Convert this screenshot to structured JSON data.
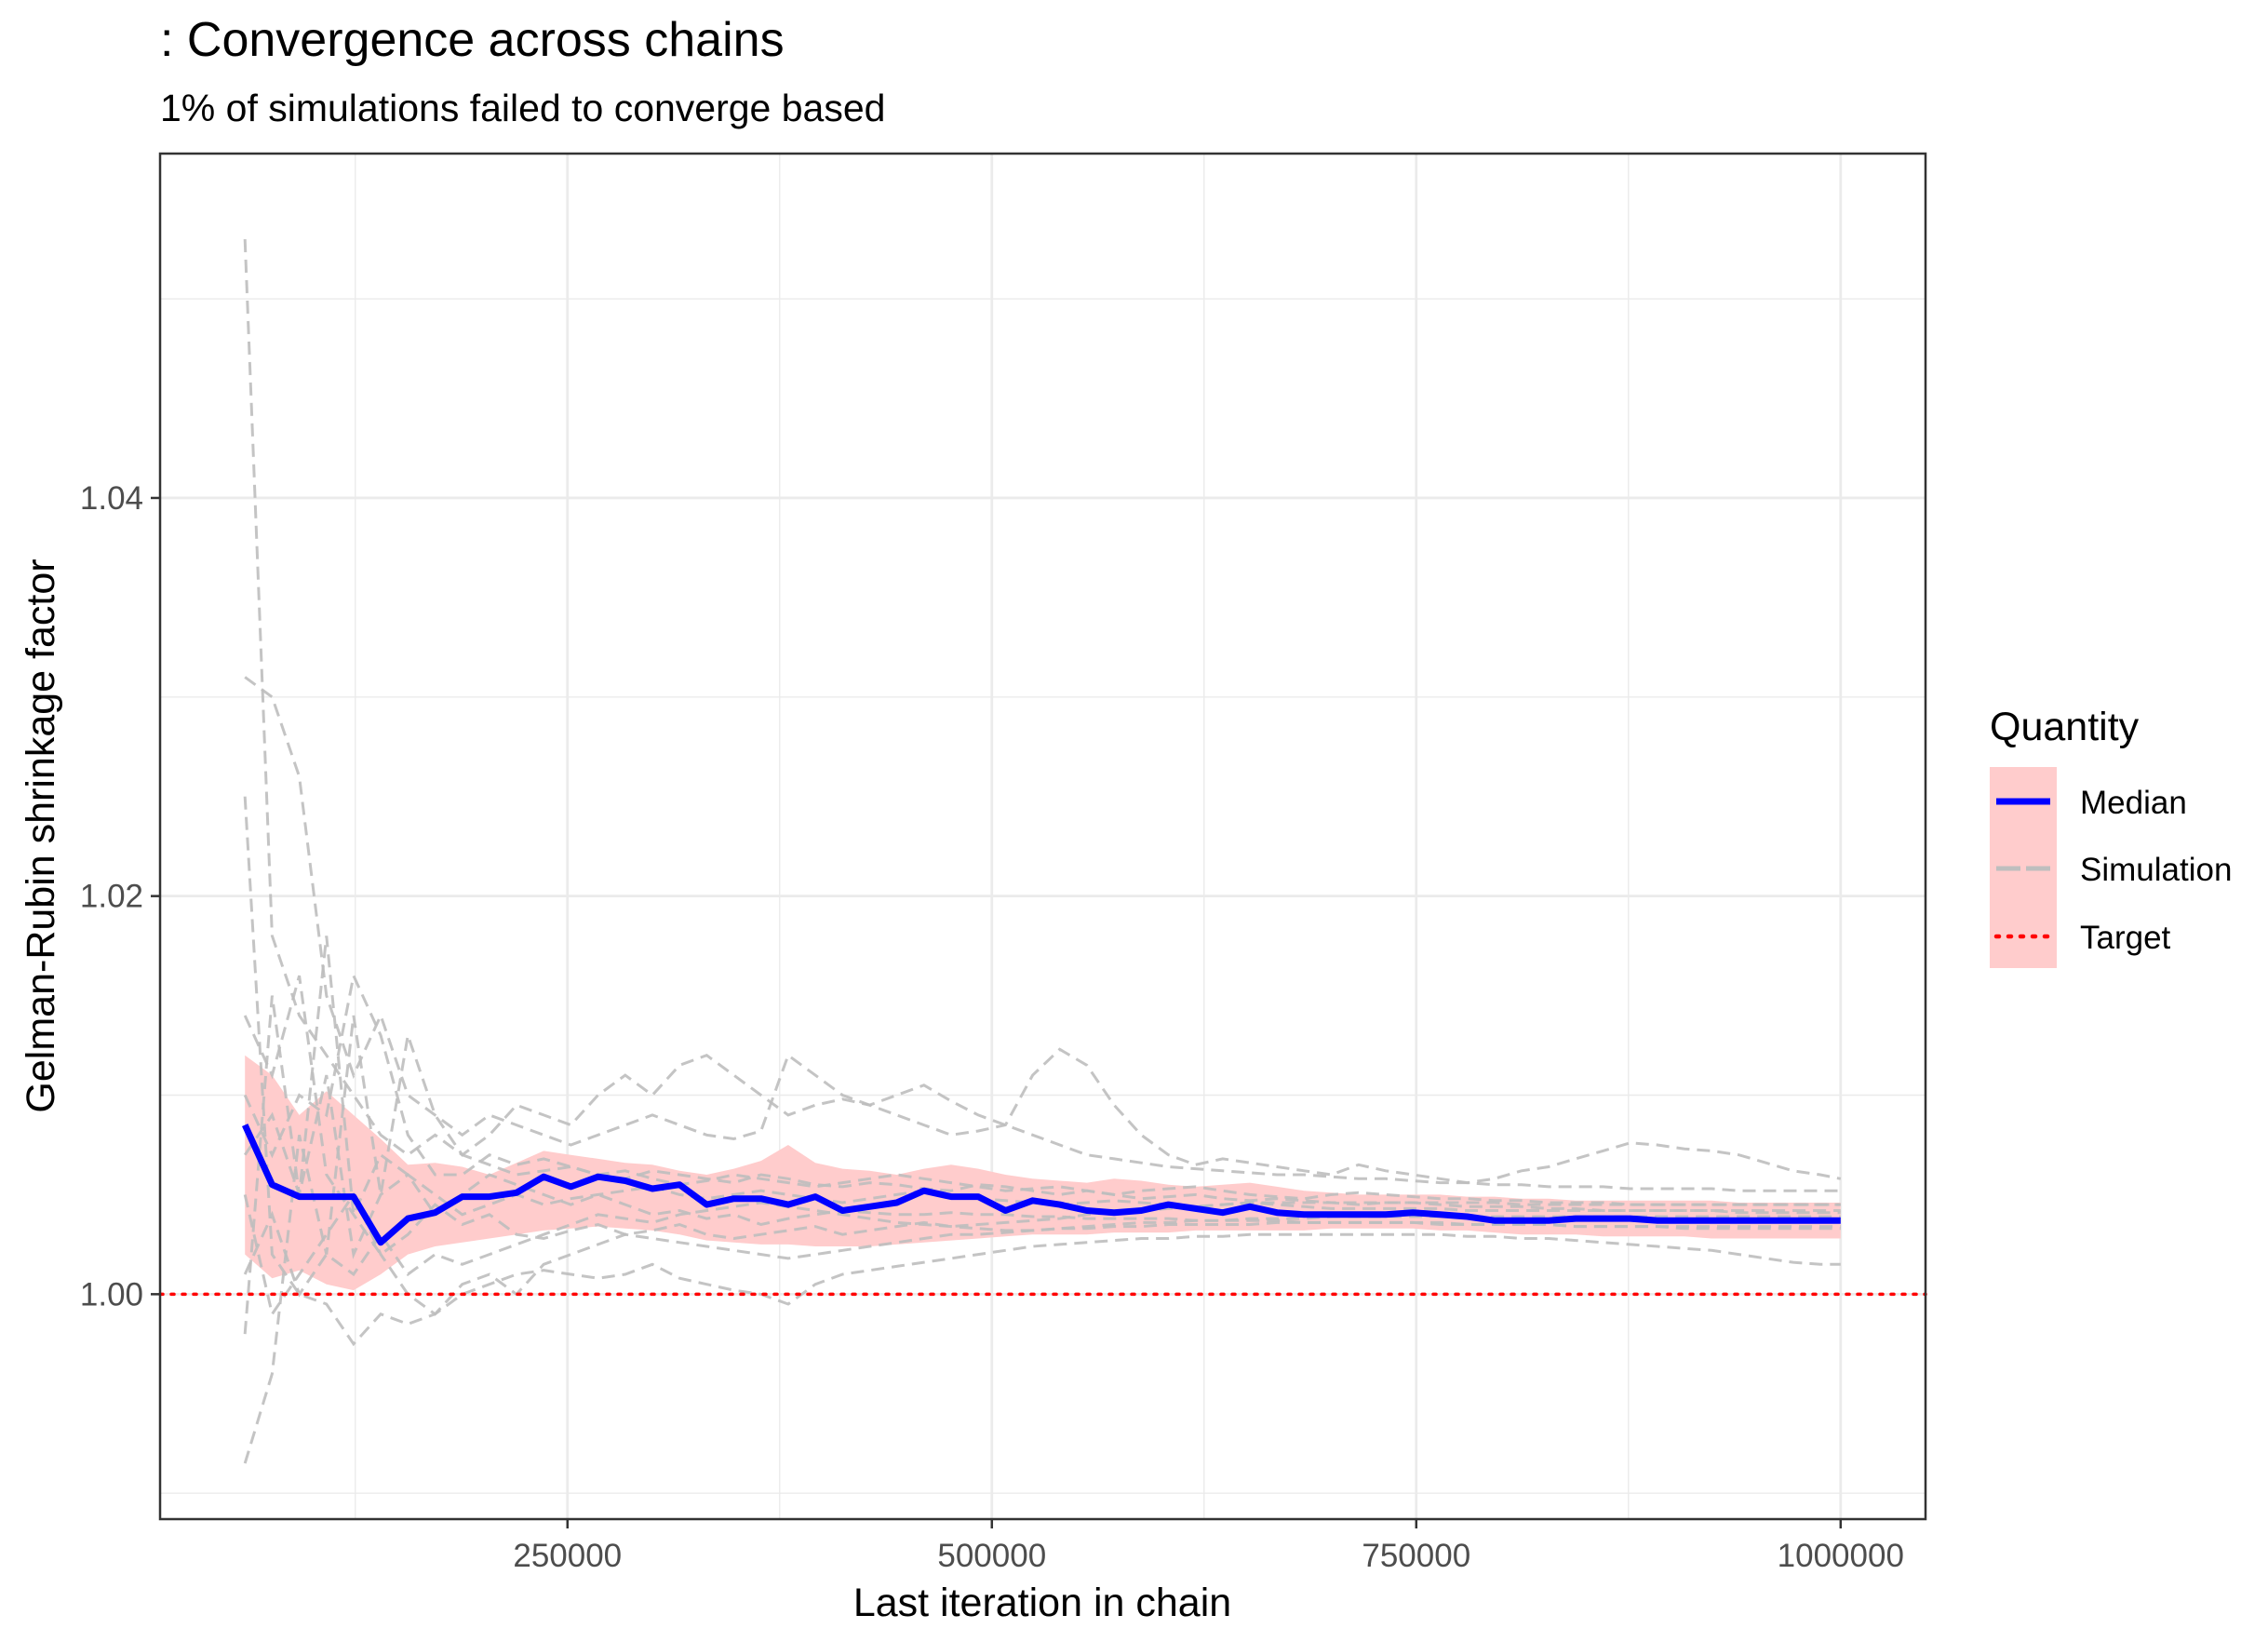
{
  "chart_data": {
    "type": "line",
    "title": ": Convergence across chains",
    "subtitle": "1% of simulations failed to converge based",
    "xlabel": "Last iteration in chain",
    "ylabel": "Gelman-Rubin shrinkage factor",
    "xlim": [
      10000,
      1050000
    ],
    "ylim": [
      0.9887,
      1.0573
    ],
    "x_ticks": [
      250000,
      500000,
      750000,
      1000000
    ],
    "x_tick_labels": [
      "250000",
      "500000",
      "750000",
      "1000000"
    ],
    "y_ticks": [
      1.0,
      1.02,
      1.04
    ],
    "y_tick_labels": [
      "1.00",
      "1.02",
      "1.04"
    ],
    "grid": true,
    "legend": {
      "title": "Quantity",
      "position": "right",
      "entries": [
        {
          "label": "Median",
          "color": "#0000ff",
          "style": "solid"
        },
        {
          "label": "Simulation",
          "color": "#bebebe",
          "style": "dashed"
        },
        {
          "label": "Target",
          "color": "#ff0000",
          "style": "dotted"
        }
      ]
    },
    "target": 1.0,
    "colors": {
      "median": "#0000ff",
      "simulation": "#bebebe",
      "target": "#ff0000",
      "band": "#ffcccc",
      "grid": "#ebebeb",
      "axis_text": "#4d4d4d"
    },
    "x": [
      60000,
      76000,
      92000,
      108000,
      124000,
      140000,
      156000,
      172000,
      188000,
      204000,
      220000,
      236000,
      252000,
      268000,
      284000,
      300000,
      316000,
      332000,
      348000,
      364000,
      380000,
      396000,
      412000,
      428000,
      444000,
      460000,
      476000,
      492000,
      508000,
      524000,
      540000,
      556000,
      572000,
      588000,
      604000,
      620000,
      636000,
      652000,
      668000,
      684000,
      700000,
      716000,
      732000,
      748000,
      764000,
      780000,
      796000,
      812000,
      828000,
      844000,
      860000,
      876000,
      892000,
      908000,
      924000,
      940000,
      956000,
      972000,
      988000,
      1000000
    ],
    "series": [
      {
        "name": "Median",
        "values": [
          1.0085,
          1.0055,
          1.0049,
          1.0049,
          1.0049,
          1.0026,
          1.0038,
          1.0041,
          1.0049,
          1.0049,
          1.0051,
          1.0059,
          1.0054,
          1.0059,
          1.0057,
          1.0053,
          1.0055,
          1.0045,
          1.0048,
          1.0048,
          1.0045,
          1.0049,
          1.0042,
          1.0044,
          1.0046,
          1.0052,
          1.0049,
          1.0049,
          1.0042,
          1.0047,
          1.0045,
          1.0042,
          1.0041,
          1.0042,
          1.0045,
          1.0043,
          1.0041,
          1.0044,
          1.0041,
          1.004,
          1.004,
          1.004,
          1.004,
          1.0041,
          1.004,
          1.0039,
          1.0037,
          1.0037,
          1.0037,
          1.0038,
          1.0038,
          1.0038,
          1.0037,
          1.0037,
          1.0037,
          1.0037,
          1.0037,
          1.0037,
          1.0037,
          1.0037
        ]
      },
      {
        "name": "band_lower",
        "values": [
          1.002,
          1.0008,
          1.0012,
          1.0005,
          1.0002,
          1.001,
          1.002,
          1.0024,
          1.0026,
          1.0028,
          1.003,
          1.0032,
          1.0033,
          1.0034,
          1.0033,
          1.0032,
          1.003,
          1.0027,
          1.0026,
          1.0025,
          1.0025,
          1.0024,
          1.0024,
          1.0024,
          1.0025,
          1.0026,
          1.0027,
          1.0028,
          1.0029,
          1.003,
          1.003,
          1.003,
          1.0031,
          1.0031,
          1.0031,
          1.0032,
          1.0032,
          1.0032,
          1.0032,
          1.0032,
          1.0033,
          1.0033,
          1.0033,
          1.0033,
          1.0032,
          1.0032,
          1.0031,
          1.003,
          1.003,
          1.003,
          1.0029,
          1.0029,
          1.0029,
          1.0029,
          1.0028,
          1.0028,
          1.0028,
          1.0028,
          1.0028,
          1.0028
        ]
      },
      {
        "name": "band_upper",
        "values": [
          1.012,
          1.011,
          1.009,
          1.0102,
          1.009,
          1.0078,
          1.0065,
          1.0066,
          1.0064,
          1.006,
          1.0066,
          1.0072,
          1.007,
          1.0068,
          1.0066,
          1.0065,
          1.0062,
          1.006,
          1.0063,
          1.0067,
          1.0075,
          1.0066,
          1.0063,
          1.0062,
          1.006,
          1.0063,
          1.0065,
          1.0063,
          1.006,
          1.0058,
          1.0057,
          1.0056,
          1.0058,
          1.0057,
          1.0055,
          1.0054,
          1.0055,
          1.0056,
          1.0054,
          1.0052,
          1.0051,
          1.005,
          1.005,
          1.005,
          1.005,
          1.0049,
          1.0049,
          1.0048,
          1.0048,
          1.0047,
          1.0047,
          1.0047,
          1.0047,
          1.0047,
          1.0047,
          1.0046,
          1.0046,
          1.0046,
          1.0046,
          1.0046
        ]
      },
      {
        "name": "sim_a",
        "values": [
          1.053,
          1.018,
          1.014,
          1.012,
          1.01,
          1.008,
          1.007,
          1.008,
          1.007,
          1.0065,
          1.006,
          1.0062,
          1.0064,
          1.006,
          1.0058,
          1.0062,
          1.006,
          1.0058,
          1.0056,
          1.006,
          1.0058,
          1.0055,
          1.0054,
          1.0056,
          1.0055,
          1.0053,
          1.0052,
          1.0055,
          1.0054,
          1.0052,
          1.005,
          1.0052,
          1.005,
          1.0048,
          1.0049,
          1.005,
          1.0048,
          1.0047,
          1.0048,
          1.0047,
          1.0046,
          1.0045,
          1.0046,
          1.0046,
          1.0045,
          1.0044,
          1.0044,
          1.0044,
          1.0043,
          1.0043,
          1.0042,
          1.0042,
          1.0042,
          1.0042,
          1.0042,
          1.0041,
          1.0041,
          1.0041,
          1.0041,
          1.0041
        ]
      },
      {
        "name": "sim_b",
        "values": [
          0.9915,
          0.996,
          1.008,
          1.002,
          1.014,
          1.005,
          1.013,
          1.009,
          1.007,
          1.008,
          1.0095,
          1.009,
          1.0085,
          1.01,
          1.011,
          1.01,
          1.0115,
          1.012,
          1.011,
          1.01,
          1.009,
          1.0095,
          1.0098,
          1.0095,
          1.01,
          1.0105,
          1.0097,
          1.009,
          1.0085,
          1.008,
          1.0075,
          1.007,
          1.0068,
          1.0066,
          1.0064,
          1.0063,
          1.0062,
          1.0061,
          1.006,
          1.006,
          1.0059,
          1.0058,
          1.0058,
          1.0057,
          1.0056,
          1.0056,
          1.0055,
          1.0055,
          1.0054,
          1.0054,
          1.0054,
          1.0053,
          1.0053,
          1.0053,
          1.0053,
          1.0052,
          1.0052,
          1.0052,
          1.0052,
          1.0052
        ]
      },
      {
        "name": "sim_c",
        "values": [
          1.031,
          1.03,
          1.026,
          1.015,
          1.011,
          1.014,
          1.01,
          1.009,
          1.008,
          1.009,
          1.0085,
          1.008,
          1.0075,
          1.008,
          1.0085,
          1.009,
          1.0085,
          1.008,
          1.0078,
          1.0082,
          1.012,
          1.011,
          1.01,
          1.0095,
          1.009,
          1.0085,
          1.008,
          1.0082,
          1.0085,
          1.011,
          1.0123,
          1.0115,
          1.0095,
          1.008,
          1.007,
          1.0065,
          1.0068,
          1.0066,
          1.0064,
          1.0062,
          1.006,
          1.0065,
          1.0062,
          1.006,
          1.0058,
          1.0056,
          1.0058,
          1.0062,
          1.0064,
          1.0068,
          1.0072,
          1.0076,
          1.0075,
          1.0073,
          1.0072,
          1.007,
          1.0066,
          1.0062,
          1.006,
          1.0058
        ]
      },
      {
        "name": "sim_d",
        "values": [
          1.025,
          1.002,
          1.0,
          0.9995,
          0.9975,
          0.999,
          0.9985,
          0.999,
          1.0,
          1.0005,
          1.001,
          1.0012,
          1.001,
          1.0008,
          1.001,
          1.0015,
          1.0008,
          1.0005,
          1.0002,
          1.0,
          0.9995,
          1.0005,
          1.001,
          1.0012,
          1.0014,
          1.0016,
          1.0018,
          1.002,
          1.0022,
          1.0024,
          1.0025,
          1.0026,
          1.0027,
          1.0028,
          1.0028,
          1.0029,
          1.0029,
          1.003,
          1.003,
          1.003,
          1.003,
          1.003,
          1.003,
          1.003,
          1.003,
          1.0029,
          1.0029,
          1.0028,
          1.0028,
          1.0027,
          1.0026,
          1.0025,
          1.0024,
          1.0023,
          1.0022,
          1.002,
          1.0018,
          1.0016,
          1.0015,
          1.0015
        ]
      },
      {
        "name": "sim_e",
        "values": [
          0.998,
          1.015,
          1.005,
          1.018,
          1.004,
          1.007,
          1.006,
          1.004,
          1.005,
          1.006,
          1.0055,
          1.005,
          1.0045,
          1.005,
          1.0045,
          1.004,
          1.0042,
          1.0038,
          1.004,
          1.0035,
          1.0038,
          1.004,
          1.0042,
          1.0041,
          1.004,
          1.004,
          1.0041,
          1.004,
          1.004,
          1.0039,
          1.0039,
          1.0038,
          1.0038,
          1.0038,
          1.0038,
          1.0037,
          1.0037,
          1.0037,
          1.0037,
          1.0036,
          1.0036,
          1.0036,
          1.0036,
          1.0036,
          1.0035,
          1.0035,
          1.0035,
          1.0035,
          1.0035,
          1.0034,
          1.0034,
          1.0034,
          1.0034,
          1.0034,
          1.0034,
          1.0034,
          1.0034,
          1.0034,
          1.0034,
          1.0034
        ]
      },
      {
        "name": "sim_f",
        "values": [
          1.014,
          1.011,
          1.016,
          1.006,
          1.004,
          1.002,
          1.003,
          1.0045,
          1.0035,
          1.004,
          1.003,
          1.0028,
          1.0032,
          1.0035,
          1.003,
          1.0032,
          1.0035,
          1.003,
          1.0028,
          1.003,
          1.0032,
          1.0034,
          1.003,
          1.0032,
          1.0034,
          1.0036,
          1.0034,
          1.0035,
          1.0036,
          1.0037,
          1.0038,
          1.004,
          1.0041,
          1.0042,
          1.0043,
          1.0044,
          1.0045,
          1.0046,
          1.0046,
          1.0046,
          1.0046,
          1.0046,
          1.0046,
          1.0046,
          1.0046,
          1.0046,
          1.0046,
          1.0045,
          1.0045,
          1.0045,
          1.0045,
          1.0045,
          1.0045,
          1.0045,
          1.0045,
          1.0045,
          1.0045,
          1.0045,
          1.0045,
          1.0045
        ]
      },
      {
        "name": "sim_g",
        "values": [
          1.005,
          0.999,
          1.001,
          1.003,
          1.005,
          1.002,
          1.0,
          0.999,
          1.0005,
          1.001,
          1.0,
          1.0015,
          1.002,
          1.0025,
          1.003,
          1.0028,
          1.0026,
          1.0024,
          1.0022,
          1.002,
          1.0018,
          1.002,
          1.0022,
          1.0024,
          1.0026,
          1.0028,
          1.003,
          1.003,
          1.0031,
          1.0032,
          1.0033,
          1.0033,
          1.0034,
          1.0034,
          1.0035,
          1.0035,
          1.0035,
          1.0035,
          1.0036,
          1.0036,
          1.0036,
          1.0036,
          1.0036,
          1.0036,
          1.0036,
          1.0035,
          1.0035,
          1.0035,
          1.0035,
          1.0034,
          1.0034,
          1.0034,
          1.0034,
          1.0033,
          1.0033,
          1.0033,
          1.0033,
          1.0033,
          1.0033,
          1.0033
        ]
      },
      {
        "name": "sim_h",
        "values": [
          1.01,
          1.007,
          1.01,
          1.009,
          1.016,
          1.013,
          1.008,
          1.006,
          1.006,
          1.007,
          1.0065,
          1.0068,
          1.0064,
          1.006,
          1.0062,
          1.0058,
          1.0055,
          1.0057,
          1.006,
          1.0058,
          1.0056,
          1.0054,
          1.0056,
          1.0058,
          1.006,
          1.0058,
          1.0056,
          1.0054,
          1.0052,
          1.0053,
          1.0054,
          1.0052,
          1.005,
          1.0052,
          1.0053,
          1.0054,
          1.0052,
          1.005,
          1.0049,
          1.0048,
          1.005,
          1.0051,
          1.005,
          1.0049,
          1.0048,
          1.0048,
          1.0047,
          1.0047,
          1.0046,
          1.0046,
          1.0046,
          1.0045,
          1.0045,
          1.0045,
          1.0045,
          1.0045,
          1.0045,
          1.0045,
          1.0045,
          1.0045
        ]
      },
      {
        "name": "sim_i",
        "values": [
          1.001,
          1.004,
          1.0,
          1.002,
          1.001,
          1.003,
          1.001,
          1.002,
          1.0015,
          1.002,
          1.0025,
          1.003,
          1.0035,
          1.004,
          1.0038,
          1.0036,
          1.004,
          1.0042,
          1.0044,
          1.0046,
          1.0044,
          1.0042,
          1.004,
          1.0038,
          1.0036,
          1.0035,
          1.0034,
          1.0033,
          1.0032,
          1.0032,
          1.0033,
          1.0034,
          1.0035,
          1.0036,
          1.0036,
          1.0037,
          1.0037,
          1.0038,
          1.0038,
          1.0038,
          1.0039,
          1.0039,
          1.0039,
          1.0039,
          1.0039,
          1.0039,
          1.0039,
          1.0039,
          1.0039,
          1.0039,
          1.0039,
          1.0039,
          1.0039,
          1.0039,
          1.0039,
          1.0039,
          1.0039,
          1.0039,
          1.0039,
          1.0039
        ]
      },
      {
        "name": "sim_j",
        "values": [
          1.007,
          1.009,
          1.005,
          1.011,
          1.002,
          1.005,
          1.006,
          1.005,
          1.004,
          1.0045,
          1.005,
          1.0045,
          1.0048,
          1.005,
          1.0052,
          1.0054,
          1.005,
          1.0048,
          1.005,
          1.0052,
          1.005,
          1.0048,
          1.0046,
          1.0048,
          1.005,
          1.0052,
          1.005,
          1.0048,
          1.0047,
          1.0046,
          1.0045,
          1.0046,
          1.0047,
          1.0046,
          1.0045,
          1.0044,
          1.0045,
          1.0046,
          1.0045,
          1.0044,
          1.0043,
          1.0043,
          1.0043,
          1.0043,
          1.0043,
          1.0042,
          1.0042,
          1.0042,
          1.0042,
          1.0042,
          1.0042,
          1.0042,
          1.0042,
          1.0042,
          1.0042,
          1.0042,
          1.0042,
          1.0042,
          1.0042,
          1.0042
        ]
      }
    ]
  }
}
